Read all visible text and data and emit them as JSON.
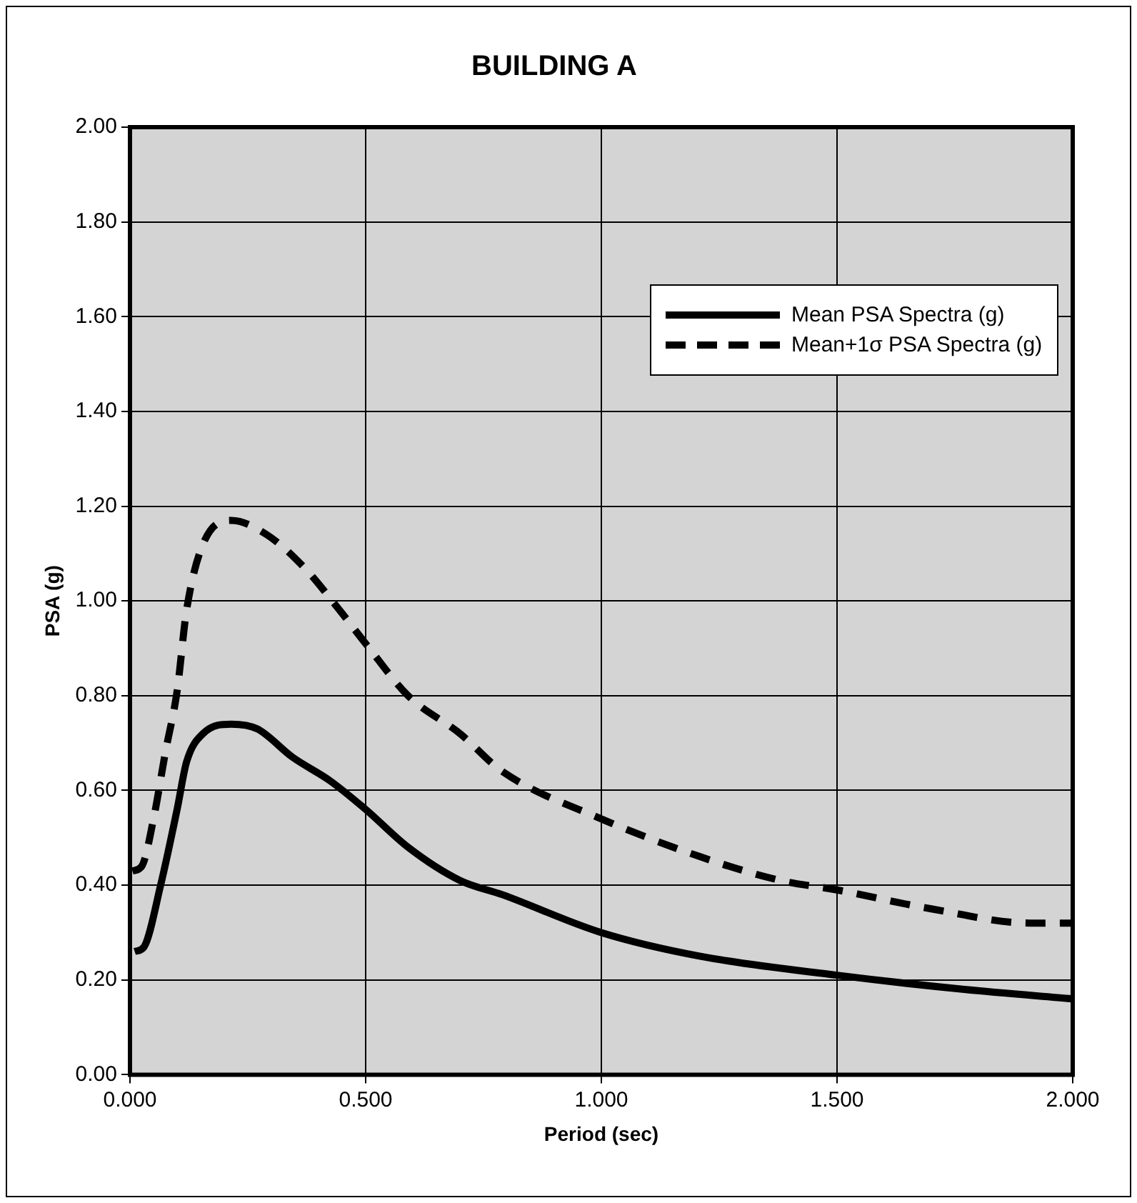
{
  "chart_data": {
    "type": "line",
    "title": "BUILDING A",
    "xlabel": "Period (sec)",
    "ylabel": "PSA (g)",
    "xlim": [
      0,
      2
    ],
    "xticks": [
      {
        "value": 0,
        "label": "0.000"
      },
      {
        "value": 0.5,
        "label": "0.500"
      },
      {
        "value": 1,
        "label": "1.000"
      },
      {
        "value": 1.5,
        "label": "1.500"
      },
      {
        "value": 2,
        "label": "2.000"
      }
    ],
    "ylim": [
      0,
      2
    ],
    "yticks": [
      {
        "value": 0,
        "label": "0.00"
      },
      {
        "value": 0.2,
        "label": "0.20"
      },
      {
        "value": 0.4,
        "label": "0.40"
      },
      {
        "value": 0.6,
        "label": "0.60"
      },
      {
        "value": 0.8,
        "label": "0.80"
      },
      {
        "value": 1,
        "label": "1.00"
      },
      {
        "value": 1.2,
        "label": "1.20"
      },
      {
        "value": 1.4,
        "label": "1.40"
      },
      {
        "value": 1.6,
        "label": "1.60"
      },
      {
        "value": 1.8,
        "label": "1.80"
      },
      {
        "value": 2,
        "label": "2.00"
      }
    ],
    "grid": true,
    "legend": "top right",
    "marker": "none",
    "series": [
      {
        "name": "Mean PSA Spectra (g)",
        "color": "#000000",
        "line_style": "solid",
        "x": [
          0.01,
          0.03,
          0.065,
          0.1,
          0.12,
          0.155,
          0.215,
          0.27,
          0.345,
          0.425,
          0.5,
          0.59,
          0.7,
          0.79,
          1.0,
          1.21,
          1.5,
          1.77,
          2.0
        ],
        "values": [
          0.26,
          0.27,
          0.4,
          0.56,
          0.66,
          0.72,
          0.74,
          0.73,
          0.67,
          0.62,
          0.56,
          0.48,
          0.41,
          0.38,
          0.3,
          0.25,
          0.21,
          0.18,
          0.16
        ]
      },
      {
        "name": "Mean+1σ PSA Spectra (g)",
        "color": "#000000",
        "line_style": "dashed",
        "x": [
          0.005,
          0.025,
          0.05,
          0.075,
          0.1,
          0.12,
          0.155,
          0.215,
          0.29,
          0.37,
          0.445,
          0.5,
          0.59,
          0.7,
          0.79,
          1.0,
          1.21,
          1.38,
          1.5,
          1.7,
          1.91,
          2.0
        ],
        "values": [
          0.43,
          0.44,
          0.54,
          0.68,
          0.81,
          0.98,
          1.12,
          1.17,
          1.14,
          1.07,
          0.98,
          0.91,
          0.8,
          0.72,
          0.64,
          0.54,
          0.46,
          0.41,
          0.39,
          0.35,
          0.32,
          0.32
        ]
      }
    ]
  }
}
